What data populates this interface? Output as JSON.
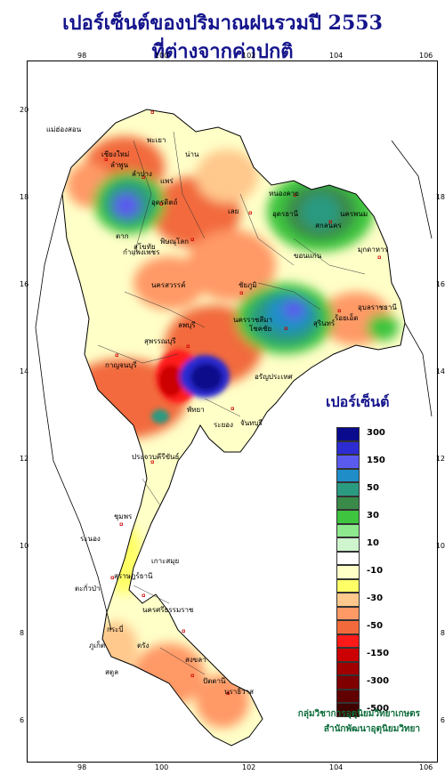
{
  "title": {
    "line1": "เปอร์เซ็นต์ของปริมาณฝนรวมปี  2553",
    "line2": "ที่ต่างจากค่าปกติ"
  },
  "axes": {
    "longitude_ticks": [
      "98",
      "100",
      "102",
      "104",
      "106"
    ],
    "latitude_ticks": [
      "20",
      "18",
      "16",
      "14",
      "12",
      "10",
      "8",
      "6"
    ]
  },
  "legend": {
    "title": "เปอร์เซ็นต์",
    "classes": [
      {
        "label": "300",
        "color": "#0a0a8c"
      },
      {
        "label": "",
        "color": "#2c2cd2"
      },
      {
        "label": "150",
        "color": "#5a5aee"
      },
      {
        "label": "",
        "color": "#1f8ec8"
      },
      {
        "label": "50",
        "color": "#2a9a80"
      },
      {
        "label": "",
        "color": "#3a8a4a"
      },
      {
        "label": "30",
        "color": "#3ec43e"
      },
      {
        "label": "",
        "color": "#8ee88e"
      },
      {
        "label": "10",
        "color": "#cff5cf"
      },
      {
        "label": "",
        "color": "#ffffff"
      },
      {
        "label": "-10",
        "color": "#ffffc8"
      },
      {
        "label": "",
        "color": "#ffff66"
      },
      {
        "label": "-30",
        "color": "#ffc88c"
      },
      {
        "label": "",
        "color": "#ff9966"
      },
      {
        "label": "-50",
        "color": "#f26a3c"
      },
      {
        "label": "",
        "color": "#ff1a1a"
      },
      {
        "label": "-150",
        "color": "#cc0000"
      },
      {
        "label": "",
        "color": "#a00000"
      },
      {
        "label": "-300",
        "color": "#800000"
      },
      {
        "label": "",
        "color": "#600000"
      },
      {
        "label": "-500",
        "color": "#400000"
      }
    ]
  },
  "place_labels": [
    "แม่ฮ่องสอน",
    "เชียงใหม่",
    "ลำพูน",
    "ลำปาง",
    "พะเยา",
    "น่าน",
    "แพร่",
    "ตาก",
    "อุตรดิตถ์",
    "สุโขทัย",
    "พิษณุโลก",
    "กำแพงเพชร",
    "นครสวรรค์",
    "หนองคาย",
    "อุดรธานี",
    "สกลนคร",
    "นครพนม",
    "มุกดาหาร",
    "ขอนแก่น",
    "เลย",
    "ชัยภูมิ",
    "นครราชสีมา",
    "สุรินทร์",
    "อุบลราชธานี",
    "ร้อยเอ็ด",
    "โชคชัย",
    "กาญจนบุรี",
    "ลพบุรี",
    "สุพรรณบุรี",
    "อรัญประเทศ",
    "ระยอง",
    "จันทบุรี",
    "พัทยา",
    "ประจวบคีรีขันธ์",
    "ชุมพร",
    "ระนอง",
    "เกาะสมุย",
    "สุราษฎร์ธานี",
    "นครศรีธรรมราช",
    "ตะกั่วป่า",
    "ภูเก็ต",
    "กระบี่",
    "ตรัง",
    "สงขลา",
    "สตูล",
    "ปัตตานี",
    "นราธิวาส"
  ],
  "credit": {
    "line1": "กลุ่มวิชาการอุตุนิยมวิทยาเกษตร",
    "line2": "สำนักพัฒนาอุตุนิยมวิทยา"
  }
}
